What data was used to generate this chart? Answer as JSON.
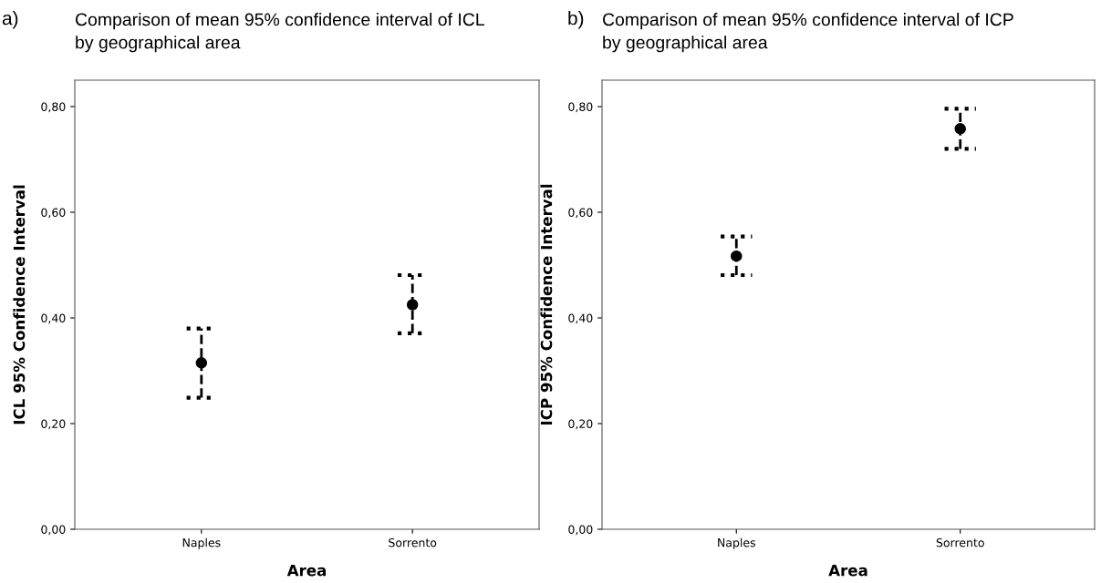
{
  "chart_data": [
    {
      "type": "scatter",
      "title": "Comparison of mean 95% confidence interval of ICL by geographical area",
      "annotations": [
        "a)"
      ],
      "xlabel": "Area",
      "ylabel": "ICL 95% Confidence Interval",
      "categories": [
        "Naples",
        "Sorrento"
      ],
      "series": [
        {
          "color": "#000000",
          "values": [
            0.315,
            0.425
          ],
          "errors": [
            [
              0.249,
              0.38
            ],
            [
              0.371,
              0.481
            ]
          ]
        }
      ],
      "ylim": [
        0,
        0.85
      ],
      "yticks": [
        {
          "value": 0,
          "label": "0,00"
        },
        {
          "value": 0.2,
          "label": "0,20"
        },
        {
          "value": 0.4,
          "label": "0,40"
        },
        {
          "value": 0.6,
          "label": "0,60"
        },
        {
          "value": 0.8,
          "label": "0,80"
        }
      ],
      "marker": "circle",
      "line_style": "dashed",
      "grid": false
    },
    {
      "type": "scatter",
      "title": "Comparison of mean 95% confidence interval of ICP by geographical area",
      "annotations": [
        "b)"
      ],
      "xlabel": "Area",
      "ylabel": "ICP 95% Confidence Interval",
      "categories": [
        "Naples",
        "Sorrento"
      ],
      "series": [
        {
          "color": "#000000",
          "values": [
            0.517,
            0.758
          ],
          "errors": [
            [
              0.481,
              0.554
            ],
            [
              0.72,
              0.796
            ]
          ]
        }
      ],
      "ylim": [
        0,
        0.85
      ],
      "yticks": [
        {
          "value": 0,
          "label": "0,00"
        },
        {
          "value": 0.2,
          "label": "0,20"
        },
        {
          "value": 0.4,
          "label": "0,40"
        },
        {
          "value": 0.6,
          "label": "0,60"
        },
        {
          "value": 0.8,
          "label": "0,80"
        }
      ],
      "marker": "circle",
      "line_style": "dashed",
      "grid": false
    }
  ]
}
